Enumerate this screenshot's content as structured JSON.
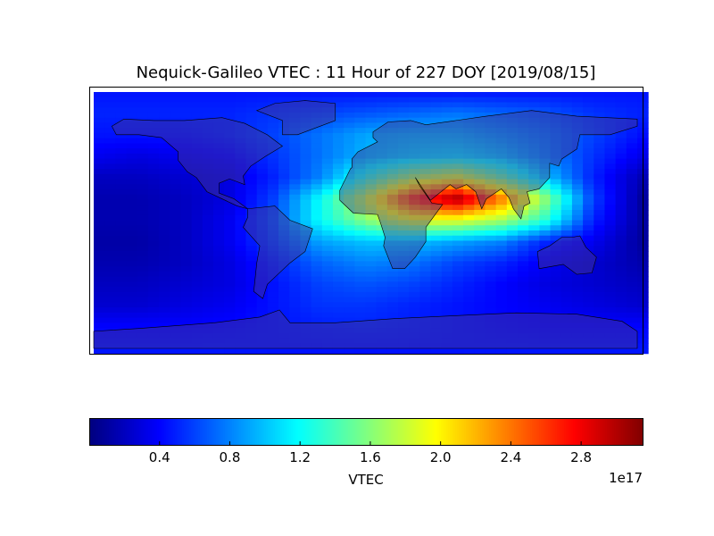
{
  "title": "Nequick-Galileo VTEC : 11 Hour of 227 DOY [2019/08/15]",
  "chart_data": {
    "type": "heatmap",
    "title": "Nequick-Galileo VTEC : 11 Hour of 227 DOY [2019/08/15]",
    "projection": "equirectangular world map with coastlines and country borders",
    "colormap": "jet",
    "colorbar": {
      "label": "VTEC",
      "exponent_label": "1e17",
      "range": [
        0,
        3.15
      ],
      "ticks": [
        0.4,
        0.8,
        1.2,
        1.6,
        2.0,
        2.4,
        2.8
      ],
      "tick_labels": [
        "0.4",
        "0.8",
        "1.2",
        "1.6",
        "2.0",
        "2.4",
        "2.8"
      ],
      "placement": "bottom"
    },
    "grid_units": "VTEC x 1e17",
    "grid_lats": [
      90,
      75,
      60,
      45,
      30,
      15,
      0,
      -15,
      -30,
      -45,
      -60,
      -75,
      -90
    ],
    "grid_lons": [
      -180,
      -150,
      -120,
      -90,
      -60,
      -30,
      0,
      30,
      60,
      90,
      120,
      150,
      180
    ],
    "grid_values": [
      [
        0.45,
        0.45,
        0.45,
        0.45,
        0.45,
        0.45,
        0.45,
        0.45,
        0.45,
        0.45,
        0.45,
        0.45,
        0.45
      ],
      [
        0.5,
        0.5,
        0.5,
        0.5,
        0.55,
        0.6,
        0.65,
        0.7,
        0.75,
        0.7,
        0.65,
        0.55,
        0.5
      ],
      [
        0.45,
        0.45,
        0.45,
        0.5,
        0.6,
        0.75,
        0.9,
        0.95,
        0.95,
        0.85,
        0.75,
        0.6,
        0.45
      ],
      [
        0.35,
        0.3,
        0.35,
        0.4,
        0.55,
        0.75,
        0.95,
        1.05,
        1.1,
        1.0,
        0.8,
        0.55,
        0.35
      ],
      [
        0.2,
        0.2,
        0.25,
        0.3,
        0.5,
        0.8,
        1.3,
        1.7,
        1.9,
        1.5,
        1.0,
        0.5,
        0.2
      ],
      [
        0.15,
        0.15,
        0.2,
        0.3,
        0.6,
        1.2,
        1.8,
        2.6,
        3.05,
        2.4,
        1.6,
        0.6,
        0.15
      ],
      [
        0.15,
        0.15,
        0.2,
        0.35,
        0.65,
        1.2,
        1.6,
        1.9,
        1.9,
        1.7,
        1.3,
        0.5,
        0.15
      ],
      [
        0.12,
        0.12,
        0.2,
        0.35,
        0.6,
        0.9,
        1.0,
        1.0,
        0.9,
        0.8,
        0.5,
        0.35,
        0.12
      ],
      [
        0.15,
        0.15,
        0.2,
        0.3,
        0.5,
        0.7,
        0.8,
        0.75,
        0.6,
        0.5,
        0.35,
        0.25,
        0.15
      ],
      [
        0.2,
        0.2,
        0.25,
        0.3,
        0.45,
        0.6,
        0.65,
        0.6,
        0.5,
        0.4,
        0.3,
        0.25,
        0.2
      ],
      [
        0.25,
        0.25,
        0.3,
        0.35,
        0.45,
        0.55,
        0.55,
        0.5,
        0.45,
        0.4,
        0.35,
        0.3,
        0.25
      ],
      [
        0.4,
        0.4,
        0.4,
        0.42,
        0.45,
        0.48,
        0.5,
        0.48,
        0.45,
        0.42,
        0.4,
        0.4,
        0.4
      ],
      [
        0.45,
        0.45,
        0.45,
        0.45,
        0.45,
        0.45,
        0.45,
        0.45,
        0.45,
        0.45,
        0.45,
        0.45,
        0.45
      ]
    ]
  }
}
